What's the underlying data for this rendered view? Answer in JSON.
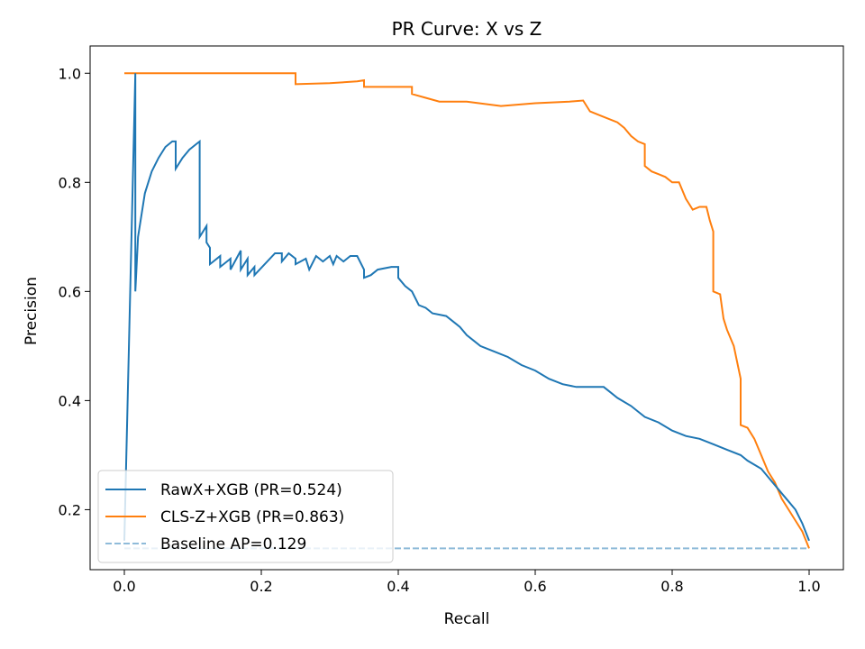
{
  "chart_data": {
    "type": "line",
    "title": "PR Curve: X vs Z",
    "xlabel": "Recall",
    "ylabel": "Precision",
    "xlim": [
      -0.05,
      1.05
    ],
    "ylim": [
      0.09,
      1.05
    ],
    "xticks": [
      0.0,
      0.2,
      0.4,
      0.6,
      0.8,
      1.0
    ],
    "xtick_labels": [
      "0.0",
      "0.2",
      "0.4",
      "0.6",
      "0.8",
      "1.0"
    ],
    "yticks": [
      0.2,
      0.4,
      0.6,
      0.8,
      1.0
    ],
    "ytick_labels": [
      "0.2",
      "0.4",
      "0.6",
      "0.8",
      "1.0"
    ],
    "grid": false,
    "legend_position": "lower-left",
    "series": [
      {
        "name": "RawX+XGB (PR=0.524)",
        "color": "#1f77b4",
        "style": "solid",
        "x": [
          0.0,
          0.016,
          0.016,
          0.02,
          0.03,
          0.04,
          0.05,
          0.06,
          0.07,
          0.075,
          0.075,
          0.085,
          0.095,
          0.105,
          0.11,
          0.11,
          0.12,
          0.12,
          0.125,
          0.125,
          0.14,
          0.14,
          0.155,
          0.155,
          0.17,
          0.17,
          0.18,
          0.18,
          0.19,
          0.19,
          0.22,
          0.23,
          0.23,
          0.24,
          0.25,
          0.25,
          0.265,
          0.27,
          0.28,
          0.29,
          0.3,
          0.305,
          0.31,
          0.32,
          0.33,
          0.34,
          0.35,
          0.35,
          0.36,
          0.37,
          0.39,
          0.4,
          0.4,
          0.41,
          0.42,
          0.43,
          0.44,
          0.45,
          0.47,
          0.49,
          0.5,
          0.51,
          0.52,
          0.54,
          0.56,
          0.58,
          0.6,
          0.62,
          0.64,
          0.66,
          0.7,
          0.71,
          0.72,
          0.74,
          0.75,
          0.76,
          0.78,
          0.8,
          0.82,
          0.84,
          0.86,
          0.88,
          0.9,
          0.91,
          0.93,
          0.94,
          0.95,
          0.96,
          0.97,
          0.98,
          0.99,
          1.0
        ],
        "values": [
          0.143,
          1.0,
          0.6,
          0.7,
          0.78,
          0.82,
          0.845,
          0.865,
          0.875,
          0.875,
          0.825,
          0.845,
          0.86,
          0.87,
          0.875,
          0.7,
          0.72,
          0.69,
          0.68,
          0.65,
          0.665,
          0.645,
          0.66,
          0.64,
          0.675,
          0.64,
          0.66,
          0.63,
          0.645,
          0.63,
          0.67,
          0.67,
          0.655,
          0.67,
          0.66,
          0.65,
          0.66,
          0.64,
          0.665,
          0.655,
          0.665,
          0.65,
          0.665,
          0.655,
          0.665,
          0.665,
          0.64,
          0.625,
          0.63,
          0.64,
          0.645,
          0.645,
          0.625,
          0.61,
          0.6,
          0.575,
          0.57,
          0.56,
          0.555,
          0.535,
          0.52,
          0.51,
          0.5,
          0.49,
          0.48,
          0.465,
          0.455,
          0.44,
          0.43,
          0.425,
          0.425,
          0.415,
          0.405,
          0.39,
          0.38,
          0.37,
          0.36,
          0.345,
          0.335,
          0.33,
          0.32,
          0.31,
          0.3,
          0.29,
          0.275,
          0.26,
          0.245,
          0.23,
          0.215,
          0.2,
          0.175,
          0.143
        ]
      },
      {
        "name": "CLS-Z+XGB (PR=0.863)",
        "color": "#ff7f0e",
        "style": "solid",
        "x": [
          0.0,
          0.05,
          0.1,
          0.15,
          0.2,
          0.25,
          0.25,
          0.3,
          0.34,
          0.35,
          0.35,
          0.4,
          0.42,
          0.42,
          0.44,
          0.46,
          0.5,
          0.55,
          0.6,
          0.65,
          0.67,
          0.68,
          0.7,
          0.72,
          0.73,
          0.74,
          0.75,
          0.76,
          0.76,
          0.77,
          0.78,
          0.79,
          0.8,
          0.81,
          0.82,
          0.83,
          0.84,
          0.85,
          0.855,
          0.86,
          0.86,
          0.87,
          0.875,
          0.88,
          0.89,
          0.9,
          0.9,
          0.91,
          0.92,
          0.93,
          0.94,
          0.95,
          0.96,
          0.97,
          0.98,
          0.99,
          1.0
        ],
        "values": [
          1.0,
          1.0,
          1.0,
          1.0,
          1.0,
          1.0,
          0.98,
          0.982,
          0.985,
          0.987,
          0.975,
          0.975,
          0.975,
          0.962,
          0.955,
          0.948,
          0.948,
          0.94,
          0.945,
          0.948,
          0.95,
          0.93,
          0.92,
          0.91,
          0.9,
          0.885,
          0.875,
          0.87,
          0.83,
          0.82,
          0.815,
          0.81,
          0.8,
          0.8,
          0.77,
          0.75,
          0.755,
          0.755,
          0.73,
          0.71,
          0.6,
          0.595,
          0.55,
          0.53,
          0.5,
          0.44,
          0.355,
          0.35,
          0.33,
          0.3,
          0.27,
          0.25,
          0.22,
          0.2,
          0.18,
          0.16,
          0.129
        ]
      },
      {
        "name": "Baseline AP=0.129",
        "color": "#1f77b4",
        "style": "dashed",
        "opacity": 0.5,
        "x": [
          0.0,
          1.0
        ],
        "values": [
          0.129,
          0.129
        ]
      }
    ]
  }
}
